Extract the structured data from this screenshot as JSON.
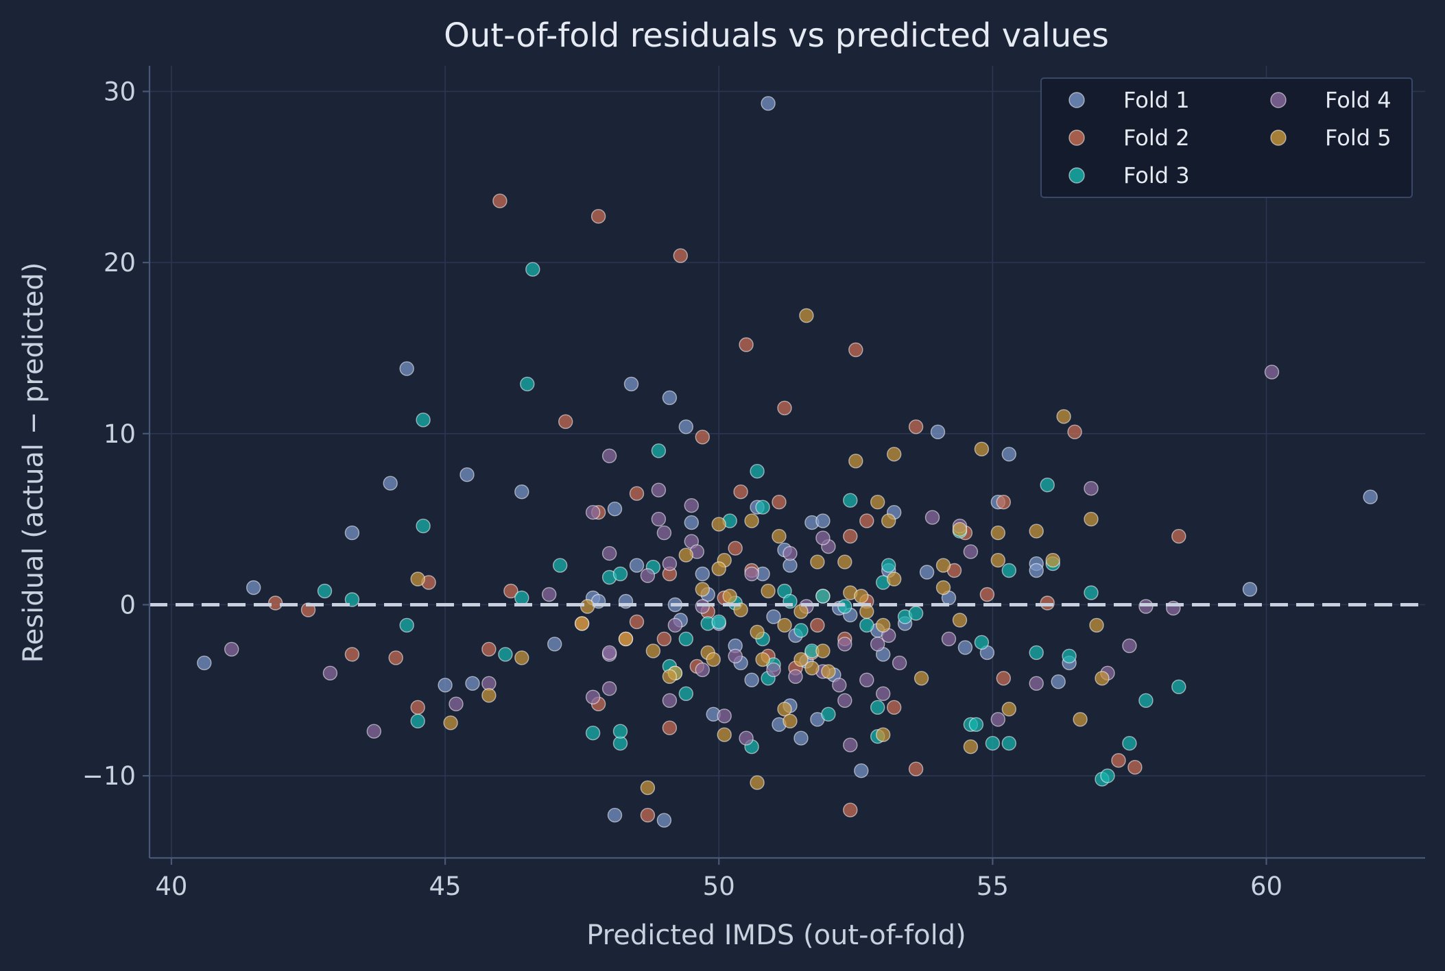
{
  "chart_data": {
    "type": "scatter",
    "title": "Out-of-fold residuals vs predicted values",
    "xlabel": "Predicted IMDS (out-of-fold)",
    "ylabel": "Residual (actual − predicted)",
    "xlim": [
      39.6,
      62.9
    ],
    "ylim": [
      -14.8,
      31.5
    ],
    "xticks": [
      40,
      45,
      50,
      55,
      60
    ],
    "yticks": [
      -10,
      0,
      10,
      20,
      30
    ],
    "xtick_labels": [
      "40",
      "45",
      "50",
      "55",
      "60"
    ],
    "ytick_labels": [
      "−10",
      "0",
      "10",
      "20",
      "30"
    ],
    "grid": true,
    "reference_line": {
      "y": 0,
      "style": "dashed",
      "color": "#c8d0e0"
    },
    "legend": {
      "position": "top-right",
      "columns": 2
    },
    "series": [
      {
        "name": "Fold 1",
        "color": "#7896c8",
        "points": [
          [
            40.6,
            -3.4
          ],
          [
            41.5,
            1.0
          ],
          [
            43.3,
            4.2
          ],
          [
            44.0,
            7.1
          ],
          [
            44.3,
            13.8
          ],
          [
            45.0,
            -4.7
          ],
          [
            45.4,
            7.6
          ],
          [
            45.5,
            -4.6
          ],
          [
            46.4,
            6.6
          ],
          [
            47.0,
            -2.3
          ],
          [
            47.7,
            0.4
          ],
          [
            48.1,
            5.6
          ],
          [
            48.1,
            -12.3
          ],
          [
            48.3,
            0.2
          ],
          [
            48.4,
            12.9
          ],
          [
            48.5,
            2.3
          ],
          [
            49.1,
            12.1
          ],
          [
            49.2,
            0.0
          ],
          [
            49.3,
            -0.9
          ],
          [
            49.4,
            10.4
          ],
          [
            49.5,
            4.8
          ],
          [
            49.7,
            1.8
          ],
          [
            49.8,
            0.6
          ],
          [
            49.9,
            -6.4
          ],
          [
            50.0,
            -1.1
          ],
          [
            50.3,
            -2.4
          ],
          [
            50.4,
            -3.4
          ],
          [
            50.6,
            -4.4
          ],
          [
            50.7,
            5.7
          ],
          [
            50.8,
            1.8
          ],
          [
            50.9,
            29.3
          ],
          [
            51.0,
            -0.7
          ],
          [
            51.1,
            -7.0
          ],
          [
            51.2,
            3.2
          ],
          [
            51.3,
            -5.9
          ],
          [
            51.3,
            2.3
          ],
          [
            51.4,
            -1.8
          ],
          [
            51.5,
            -7.8
          ],
          [
            51.6,
            -3.3
          ],
          [
            51.7,
            4.8
          ],
          [
            51.8,
            -6.7
          ],
          [
            51.9,
            4.9
          ],
          [
            52.1,
            -4.1
          ],
          [
            52.2,
            -0.2
          ],
          [
            52.4,
            -0.6
          ],
          [
            52.6,
            -9.7
          ],
          [
            52.9,
            -1.5
          ],
          [
            53.0,
            -2.9
          ],
          [
            53.1,
            2.0
          ],
          [
            53.2,
            5.4
          ],
          [
            53.4,
            -1.1
          ],
          [
            53.8,
            1.9
          ],
          [
            54.0,
            10.1
          ],
          [
            54.2,
            0.4
          ],
          [
            54.5,
            -2.5
          ],
          [
            54.9,
            -2.8
          ],
          [
            55.1,
            6.0
          ],
          [
            55.3,
            8.8
          ],
          [
            55.8,
            2.4
          ],
          [
            55.8,
            2.0
          ],
          [
            56.2,
            -4.5
          ],
          [
            56.4,
            -3.4
          ],
          [
            59.7,
            0.9
          ],
          [
            61.9,
            6.3
          ],
          [
            49.0,
            -12.6
          ],
          [
            47.8,
            0.2
          ]
        ]
      },
      {
        "name": "Fold 2",
        "color": "#c96f55",
        "points": [
          [
            41.9,
            0.1
          ],
          [
            42.5,
            -0.3
          ],
          [
            43.3,
            -2.9
          ],
          [
            44.1,
            -3.1
          ],
          [
            44.5,
            -6.0
          ],
          [
            44.7,
            1.3
          ],
          [
            45.8,
            -2.6
          ],
          [
            46.0,
            23.6
          ],
          [
            46.2,
            0.8
          ],
          [
            47.2,
            10.7
          ],
          [
            47.8,
            5.4
          ],
          [
            47.8,
            22.7
          ],
          [
            47.8,
            -5.8
          ],
          [
            48.3,
            -2.0
          ],
          [
            48.5,
            6.5
          ],
          [
            48.5,
            -1.0
          ],
          [
            48.7,
            -12.3
          ],
          [
            49.0,
            -2.0
          ],
          [
            49.1,
            -7.2
          ],
          [
            49.3,
            20.4
          ],
          [
            49.6,
            -3.6
          ],
          [
            49.7,
            9.8
          ],
          [
            49.8,
            -0.4
          ],
          [
            50.1,
            0.4
          ],
          [
            50.3,
            3.3
          ],
          [
            50.4,
            6.6
          ],
          [
            50.5,
            15.2
          ],
          [
            50.6,
            2.0
          ],
          [
            50.9,
            -3.0
          ],
          [
            51.1,
            6.0
          ],
          [
            51.2,
            11.5
          ],
          [
            51.4,
            -3.7
          ],
          [
            51.7,
            -2.8
          ],
          [
            51.8,
            -1.2
          ],
          [
            51.9,
            0.5
          ],
          [
            52.3,
            -2.0
          ],
          [
            52.4,
            4.0
          ],
          [
            52.5,
            14.9
          ],
          [
            52.4,
            -12.0
          ],
          [
            52.7,
            4.9
          ],
          [
            52.7,
            0.2
          ],
          [
            53.2,
            -6.0
          ],
          [
            53.6,
            -9.6
          ],
          [
            53.6,
            10.4
          ],
          [
            54.3,
            2.0
          ],
          [
            54.5,
            4.2
          ],
          [
            54.9,
            0.6
          ],
          [
            55.2,
            -4.3
          ],
          [
            55.2,
            6.0
          ],
          [
            56.0,
            0.1
          ],
          [
            56.5,
            10.1
          ],
          [
            57.3,
            -9.1
          ],
          [
            57.6,
            -9.5
          ],
          [
            58.4,
            4.0
          ],
          [
            49.1,
            1.8
          ],
          [
            47.5,
            -1.1
          ]
        ]
      },
      {
        "name": "Fold 3",
        "color": "#17b6ae",
        "points": [
          [
            42.8,
            0.8
          ],
          [
            43.3,
            0.3
          ],
          [
            44.3,
            -1.2
          ],
          [
            44.5,
            -6.8
          ],
          [
            44.6,
            4.6
          ],
          [
            44.6,
            10.8
          ],
          [
            46.1,
            -2.9
          ],
          [
            46.4,
            0.4
          ],
          [
            46.5,
            12.9
          ],
          [
            46.6,
            19.6
          ],
          [
            47.1,
            2.3
          ],
          [
            47.7,
            -7.5
          ],
          [
            48.0,
            1.6
          ],
          [
            48.2,
            1.8
          ],
          [
            48.2,
            -8.1
          ],
          [
            48.2,
            -7.4
          ],
          [
            48.8,
            2.2
          ],
          [
            48.9,
            9.0
          ],
          [
            49.1,
            -3.6
          ],
          [
            49.4,
            -2.0
          ],
          [
            49.4,
            -5.2
          ],
          [
            49.8,
            -1.1
          ],
          [
            50.2,
            4.9
          ],
          [
            50.3,
            0.1
          ],
          [
            50.6,
            -8.3
          ],
          [
            50.7,
            7.8
          ],
          [
            50.8,
            5.7
          ],
          [
            50.8,
            -2.0
          ],
          [
            50.9,
            -4.3
          ],
          [
            51.0,
            -3.5
          ],
          [
            51.2,
            0.8
          ],
          [
            51.3,
            0.2
          ],
          [
            51.5,
            -1.5
          ],
          [
            51.7,
            -2.7
          ],
          [
            51.9,
            0.5
          ],
          [
            52.0,
            -6.4
          ],
          [
            52.3,
            -0.1
          ],
          [
            52.4,
            6.1
          ],
          [
            52.7,
            -1.2
          ],
          [
            52.9,
            -6.0
          ],
          [
            52.9,
            -7.7
          ],
          [
            53.0,
            1.3
          ],
          [
            53.1,
            2.3
          ],
          [
            53.4,
            -0.7
          ],
          [
            53.6,
            -0.5
          ],
          [
            54.4,
            4.3
          ],
          [
            54.6,
            -7.0
          ],
          [
            54.7,
            -7.0
          ],
          [
            54.8,
            -2.2
          ],
          [
            55.0,
            -8.1
          ],
          [
            55.3,
            2.0
          ],
          [
            55.3,
            -8.1
          ],
          [
            55.8,
            -2.8
          ],
          [
            56.0,
            7.0
          ],
          [
            56.1,
            2.4
          ],
          [
            56.4,
            -3.0
          ],
          [
            56.8,
            0.7
          ],
          [
            57.0,
            -10.2
          ],
          [
            57.1,
            -10.0
          ],
          [
            57.5,
            -8.1
          ],
          [
            57.8,
            -5.6
          ],
          [
            58.4,
            -4.8
          ],
          [
            49.2,
            -4.0
          ],
          [
            50.0,
            -1.0
          ]
        ]
      },
      {
        "name": "Fold 4",
        "color": "#8a6ca0",
        "points": [
          [
            41.1,
            -2.6
          ],
          [
            42.9,
            -4.0
          ],
          [
            43.7,
            -7.4
          ],
          [
            45.2,
            -5.8
          ],
          [
            45.8,
            -4.6
          ],
          [
            46.9,
            0.6
          ],
          [
            47.7,
            5.4
          ],
          [
            47.7,
            -5.4
          ],
          [
            48.0,
            3.0
          ],
          [
            48.0,
            8.7
          ],
          [
            48.0,
            -2.9
          ],
          [
            48.0,
            -4.9
          ],
          [
            48.7,
            1.7
          ],
          [
            48.9,
            6.7
          ],
          [
            49.0,
            4.2
          ],
          [
            48.9,
            5.0
          ],
          [
            49.1,
            2.4
          ],
          [
            49.1,
            -5.6
          ],
          [
            49.2,
            -1.2
          ],
          [
            49.5,
            5.8
          ],
          [
            49.5,
            3.7
          ],
          [
            49.6,
            3.1
          ],
          [
            49.7,
            -3.8
          ],
          [
            49.7,
            -0.1
          ],
          [
            50.1,
            -6.5
          ],
          [
            50.3,
            -3.0
          ],
          [
            50.5,
            -7.8
          ],
          [
            50.6,
            1.8
          ],
          [
            51.0,
            -3.8
          ],
          [
            51.3,
            3.0
          ],
          [
            51.4,
            -4.2
          ],
          [
            51.6,
            -0.1
          ],
          [
            51.9,
            -3.9
          ],
          [
            52.0,
            3.4
          ],
          [
            52.2,
            -4.7
          ],
          [
            52.3,
            -5.6
          ],
          [
            52.4,
            -8.2
          ],
          [
            52.7,
            -4.4
          ],
          [
            52.9,
            -2.3
          ],
          [
            53.0,
            -5.2
          ],
          [
            53.1,
            -1.8
          ],
          [
            53.3,
            -3.4
          ],
          [
            53.9,
            5.1
          ],
          [
            54.2,
            -2.0
          ],
          [
            54.4,
            4.6
          ],
          [
            54.6,
            3.1
          ],
          [
            55.1,
            -6.7
          ],
          [
            55.8,
            -4.6
          ],
          [
            56.8,
            6.8
          ],
          [
            57.1,
            -4.0
          ],
          [
            57.5,
            -2.4
          ],
          [
            57.8,
            -0.1
          ],
          [
            58.3,
            -0.2
          ],
          [
            60.1,
            13.6
          ],
          [
            52.3,
            -2.3
          ],
          [
            51.9,
            3.9
          ],
          [
            48.0,
            -2.8
          ]
        ]
      },
      {
        "name": "Fold 5",
        "color": "#c9973c",
        "points": [
          [
            44.5,
            1.5
          ],
          [
            45.1,
            -6.9
          ],
          [
            45.8,
            -5.3
          ],
          [
            46.4,
            -3.1
          ],
          [
            47.5,
            -1.1
          ],
          [
            47.6,
            -0.1
          ],
          [
            48.3,
            -2.0
          ],
          [
            48.7,
            -10.7
          ],
          [
            48.8,
            -2.7
          ],
          [
            49.2,
            -4.0
          ],
          [
            49.4,
            2.9
          ],
          [
            49.7,
            0.9
          ],
          [
            49.8,
            -2.8
          ],
          [
            49.9,
            -3.2
          ],
          [
            50.0,
            4.7
          ],
          [
            50.1,
            2.6
          ],
          [
            50.1,
            -7.6
          ],
          [
            50.2,
            0.5
          ],
          [
            50.4,
            -0.3
          ],
          [
            50.6,
            4.9
          ],
          [
            50.7,
            -1.6
          ],
          [
            50.7,
            -10.4
          ],
          [
            50.8,
            -3.2
          ],
          [
            50.9,
            0.8
          ],
          [
            51.1,
            4.0
          ],
          [
            51.2,
            -6.1
          ],
          [
            51.2,
            -1.2
          ],
          [
            51.3,
            -6.8
          ],
          [
            51.5,
            -3.2
          ],
          [
            51.5,
            -0.4
          ],
          [
            51.6,
            16.9
          ],
          [
            51.7,
            -3.7
          ],
          [
            51.8,
            2.5
          ],
          [
            51.9,
            -2.7
          ],
          [
            52.0,
            -3.9
          ],
          [
            52.3,
            2.5
          ],
          [
            52.4,
            0.7
          ],
          [
            52.5,
            8.4
          ],
          [
            52.6,
            0.5
          ],
          [
            52.7,
            -0.4
          ],
          [
            52.9,
            6.0
          ],
          [
            53.0,
            -7.6
          ],
          [
            53.0,
            -1.2
          ],
          [
            53.1,
            4.9
          ],
          [
            53.2,
            8.8
          ],
          [
            53.2,
            1.5
          ],
          [
            53.7,
            -4.3
          ],
          [
            54.1,
            1.0
          ],
          [
            54.1,
            2.3
          ],
          [
            54.4,
            4.4
          ],
          [
            54.4,
            -0.9
          ],
          [
            54.6,
            -8.3
          ],
          [
            54.8,
            9.1
          ],
          [
            55.1,
            2.6
          ],
          [
            55.1,
            4.2
          ],
          [
            55.3,
            -6.1
          ],
          [
            55.8,
            4.3
          ],
          [
            56.1,
            2.6
          ],
          [
            56.3,
            11.0
          ],
          [
            56.6,
            -6.7
          ],
          [
            56.8,
            5.0
          ],
          [
            56.9,
            -1.2
          ],
          [
            57.0,
            -4.3
          ],
          [
            50.0,
            2.1
          ],
          [
            49.1,
            -4.2
          ]
        ]
      }
    ]
  }
}
